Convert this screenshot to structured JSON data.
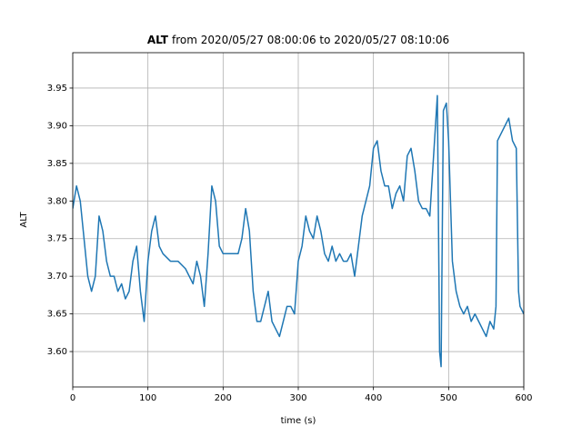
{
  "chart_data": {
    "type": "line",
    "title": {
      "bold": "ALT",
      "rest": "from 2020/05/27 08:00:06 to 2020/05/27 08:10:06"
    },
    "xlabel": "time (s)",
    "ylabel": "ALT",
    "x": [
      0,
      5,
      10,
      15,
      20,
      25,
      30,
      35,
      40,
      45,
      50,
      55,
      60,
      65,
      70,
      75,
      80,
      85,
      90,
      95,
      100,
      105,
      110,
      115,
      120,
      130,
      140,
      150,
      160,
      165,
      170,
      175,
      180,
      185,
      190,
      195,
      200,
      210,
      220,
      225,
      230,
      235,
      240,
      245,
      250,
      255,
      260,
      265,
      270,
      275,
      280,
      285,
      290,
      295,
      300,
      305,
      310,
      315,
      320,
      325,
      330,
      335,
      340,
      345,
      350,
      355,
      360,
      365,
      370,
      375,
      380,
      385,
      390,
      395,
      400,
      405,
      410,
      415,
      420,
      425,
      430,
      435,
      440,
      445,
      450,
      455,
      460,
      465,
      470,
      475,
      480,
      485,
      488,
      490,
      493,
      497,
      500,
      505,
      510,
      515,
      520,
      525,
      530,
      535,
      540,
      545,
      550,
      555,
      560,
      563,
      565,
      570,
      575,
      580,
      585,
      590,
      593,
      595,
      600
    ],
    "values": [
      3.79,
      3.82,
      3.8,
      3.75,
      3.7,
      3.68,
      3.7,
      3.78,
      3.76,
      3.72,
      3.7,
      3.7,
      3.68,
      3.69,
      3.67,
      3.68,
      3.72,
      3.74,
      3.68,
      3.64,
      3.72,
      3.76,
      3.78,
      3.74,
      3.73,
      3.72,
      3.72,
      3.71,
      3.69,
      3.72,
      3.7,
      3.66,
      3.73,
      3.82,
      3.8,
      3.74,
      3.73,
      3.73,
      3.73,
      3.75,
      3.79,
      3.76,
      3.68,
      3.64,
      3.64,
      3.66,
      3.68,
      3.64,
      3.63,
      3.62,
      3.64,
      3.66,
      3.66,
      3.65,
      3.72,
      3.74,
      3.78,
      3.76,
      3.75,
      3.78,
      3.76,
      3.73,
      3.72,
      3.74,
      3.72,
      3.73,
      3.72,
      3.72,
      3.73,
      3.7,
      3.74,
      3.78,
      3.8,
      3.82,
      3.87,
      3.88,
      3.84,
      3.82,
      3.82,
      3.79,
      3.81,
      3.82,
      3.8,
      3.86,
      3.87,
      3.84,
      3.8,
      3.79,
      3.79,
      3.78,
      3.86,
      3.94,
      3.6,
      3.58,
      3.92,
      3.93,
      3.88,
      3.72,
      3.68,
      3.66,
      3.65,
      3.66,
      3.64,
      3.65,
      3.64,
      3.63,
      3.62,
      3.64,
      3.63,
      3.66,
      3.88,
      3.89,
      3.9,
      3.91,
      3.88,
      3.87,
      3.68,
      3.66,
      3.65
    ],
    "color": "#1f77b4",
    "xlim": [
      0,
      600
    ],
    "xticks": [
      0,
      100,
      200,
      300,
      400,
      500,
      600
    ],
    "ylim": [
      3.553,
      3.997
    ],
    "yticks": [
      {
        "value": 3.6,
        "label": "3.60"
      },
      3.65,
      {
        "value": 3.7,
        "label": "3.70"
      },
      3.75,
      {
        "value": 3.8,
        "label": "3.80"
      },
      3.85,
      {
        "value": 3.9,
        "label": "3.90"
      },
      3.95
    ],
    "grid": true
  }
}
